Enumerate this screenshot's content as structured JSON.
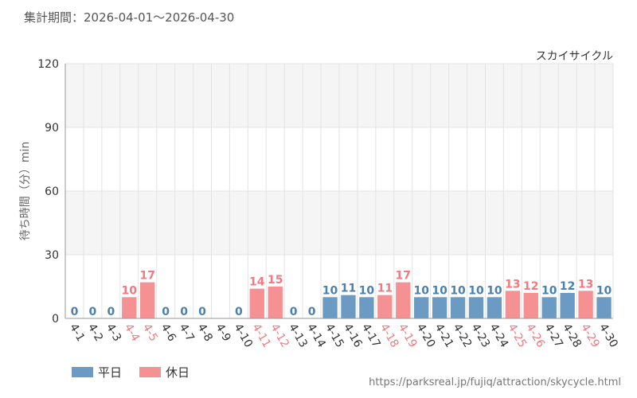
{
  "header": {
    "title": "集計期間：2026-04-01～2026-04-30"
  },
  "source": {
    "url": "https://parksreal.jp/fujiq/attraction/skycycle.html"
  },
  "colors": {
    "weekday": "#6b9bc3",
    "holiday": "#f59093",
    "weekday_label": "#4a7fae",
    "holiday_label": "#f07a80",
    "plot_band": "#f5f5f5",
    "grid": "#e3e3e3"
  },
  "chart_data": {
    "type": "bar",
    "title": "スカイサイクル",
    "ylabel": "待ち時間（分）min",
    "xlabel": "",
    "ylim": [
      0,
      120
    ],
    "yticks": [
      "0",
      "30",
      "60",
      "90",
      "120"
    ],
    "grid": true,
    "legend_position": "bottom-left",
    "legend": [
      {
        "key": "weekday",
        "label": "平日"
      },
      {
        "key": "holiday",
        "label": "休日"
      }
    ],
    "categories": [
      "4-1",
      "4-2",
      "4-3",
      "4-4",
      "4-5",
      "4-6",
      "4-7",
      "4-8",
      "4-9",
      "4-10",
      "4-11",
      "4-12",
      "4-13",
      "4-14",
      "4-15",
      "4-16",
      "4-17",
      "4-18",
      "4-19",
      "4-20",
      "4-21",
      "4-22",
      "4-23",
      "4-24",
      "4-25",
      "4-26",
      "4-27",
      "4-28",
      "4-29",
      "4-30"
    ],
    "values": [
      0,
      0,
      0,
      10,
      17,
      0,
      0,
      0,
      null,
      0,
      14,
      15,
      0,
      0,
      10,
      11,
      10,
      11,
      17,
      10,
      10,
      10,
      10,
      10,
      13,
      12,
      10,
      12,
      13,
      10
    ],
    "day_type": [
      "weekday",
      "weekday",
      "weekday",
      "holiday",
      "holiday",
      "weekday",
      "weekday",
      "weekday",
      "weekday",
      "weekday",
      "holiday",
      "holiday",
      "weekday",
      "weekday",
      "weekday",
      "weekday",
      "weekday",
      "holiday",
      "holiday",
      "weekday",
      "weekday",
      "weekday",
      "weekday",
      "weekday",
      "holiday",
      "holiday",
      "weekday",
      "weekday",
      "holiday",
      "weekday"
    ]
  }
}
